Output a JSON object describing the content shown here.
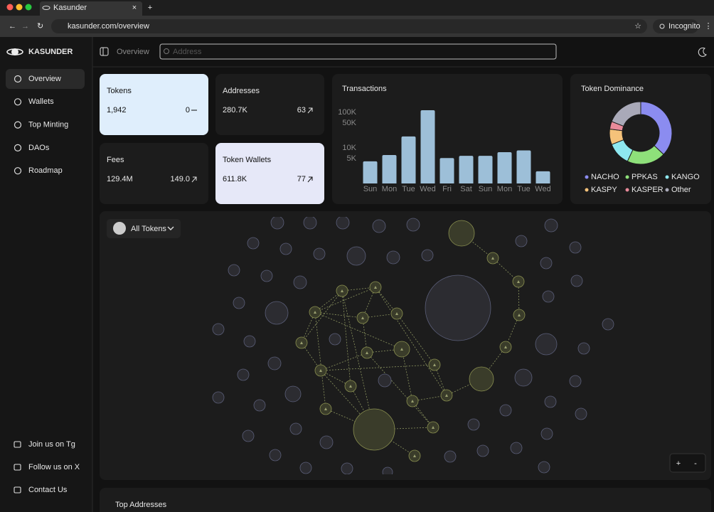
{
  "browser": {
    "tab_title": "Kasunder",
    "url": "kasunder.com/overview",
    "incognito": "Incognito"
  },
  "sidebar": {
    "brand": "KASUNDER",
    "nav": [
      "Overview",
      "Wallets",
      "Top Minting",
      "DAOs",
      "Roadmap"
    ],
    "footer": [
      "Join us on Tg",
      "Follow us on X",
      "Contact Us"
    ]
  },
  "header": {
    "breadcrumb": "Overview",
    "search_placeholder": "Address"
  },
  "stats": [
    {
      "label": "Tokens",
      "value": "1,942",
      "change": "0"
    },
    {
      "label": "Addresses",
      "value": "280.7K",
      "change": "63"
    },
    {
      "label": "Fees",
      "value": "129.4M",
      "change": "149.0"
    },
    {
      "label": "Token Wallets",
      "value": "611.8K",
      "change": "77"
    }
  ],
  "chart_data": [
    {
      "type": "bar",
      "title": "Transactions",
      "categories": [
        "Sun",
        "Mon",
        "Tue",
        "Wed",
        "Fri",
        "Sat",
        "Sun",
        "Mon",
        "Tue",
        "Wed"
      ],
      "values": [
        4200,
        6300,
        21000,
        115000,
        5200,
        6000,
        6000,
        7600,
        8500,
        2200
      ],
      "color": "#9dbfd8",
      "log_scale": true,
      "ylim": [
        1000,
        120000
      ],
      "yticks": [
        {
          "value": 5000,
          "label": "5K"
        },
        {
          "value": 10000,
          "label": "10K"
        },
        {
          "value": 50000,
          "label": "50K"
        },
        {
          "value": 100000,
          "label": "100K"
        }
      ]
    },
    {
      "type": "pie",
      "title": "Token Dominance",
      "categories": [
        "NACHO",
        "PPKAS",
        "KANGO",
        "KASPY",
        "KASPER",
        "Other"
      ],
      "values": [
        37,
        20,
        12,
        8,
        4,
        19
      ],
      "colors": [
        "#8b8cf0",
        "#8ee07a",
        "#8ee8f0",
        "#f5c27a",
        "#e88a9a",
        "#a9a9b8"
      ]
    }
  ],
  "graph": {
    "filter": "All Tokens",
    "zoom_in": "+",
    "zoom_out": "-"
  },
  "table": {
    "title": "Top Addresses"
  }
}
